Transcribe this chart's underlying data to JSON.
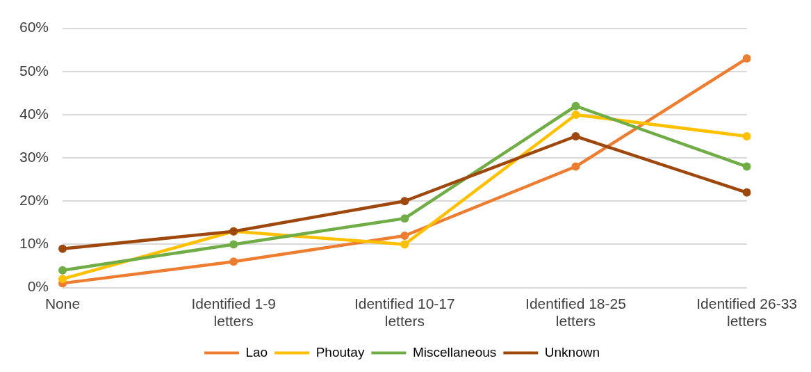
{
  "chart_data": {
    "type": "line",
    "categories": [
      "None",
      "Identified 1-9 letters",
      "Identified 10-17 letters",
      "Identified 18-25 letters",
      "Identified 26-33 letters"
    ],
    "series": [
      {
        "name": "Lao",
        "color": "#ed7d31",
        "values": [
          1,
          6,
          12,
          28,
          53
        ]
      },
      {
        "name": "Phoutay",
        "color": "#ffc000",
        "values": [
          2,
          13,
          10,
          40,
          35
        ]
      },
      {
        "name": "Miscellaneous",
        "color": "#70ad47",
        "values": [
          4,
          10,
          16,
          42,
          28
        ]
      },
      {
        "name": "Unknown",
        "color": "#9e480e",
        "values": [
          9,
          13,
          20,
          35,
          22
        ]
      }
    ],
    "ylim": [
      0,
      60
    ],
    "yticks": [
      {
        "value": 0,
        "label": "0%"
      },
      {
        "value": 10,
        "label": "10%"
      },
      {
        "value": 20,
        "label": "20%"
      },
      {
        "value": 30,
        "label": "30%"
      },
      {
        "value": 40,
        "label": "40%"
      },
      {
        "value": 50,
        "label": "50%"
      },
      {
        "value": 60,
        "label": "60%"
      }
    ],
    "grid": "y",
    "legend": "bottom",
    "marker": "circle",
    "line_style": "solid"
  }
}
